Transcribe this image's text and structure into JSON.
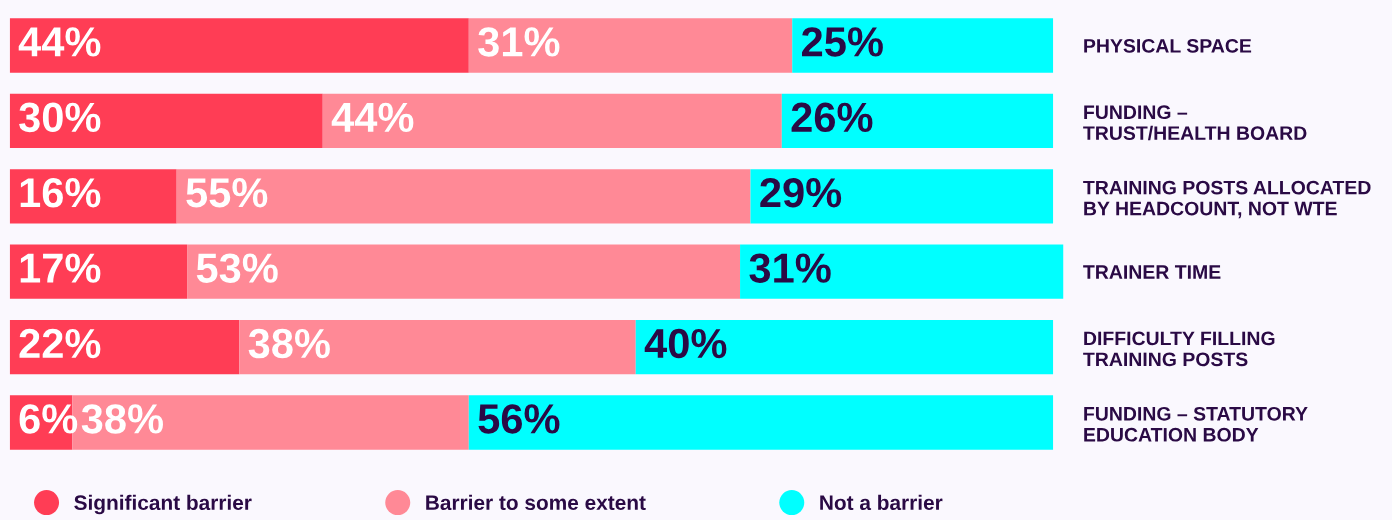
{
  "chart_data": {
    "type": "bar",
    "orientation": "horizontal",
    "stacked": true,
    "legend": "bottom left",
    "categories": [
      "PHYSICAL SPACE",
      "FUNDING –\nTRUST/HEALTH BOARD",
      "TRAINING POSTS ALLOCATED\nBY HEADCOUNT, NOT WTE",
      "TRAINER TIME",
      "DIFFICULTY FILLING\nTRAINING POSTS",
      "FUNDING – STATUTORY\nEDUCATION BODY"
    ],
    "series": [
      {
        "name": "Significant barrier",
        "color": "#ff3d55",
        "values": [
          44,
          30,
          16,
          17,
          22,
          6
        ],
        "value_labels": [
          "44%",
          "30%",
          "16%",
          "17%",
          "22%",
          "6%"
        ]
      },
      {
        "name": "Barrier to some extent",
        "color": "#ff8996",
        "values": [
          31,
          44,
          55,
          53,
          38,
          38
        ],
        "value_labels": [
          "31%",
          "44%",
          "55%",
          "53%",
          "38%",
          "38%"
        ]
      },
      {
        "name": "Not a barrier",
        "color": "#00ffff",
        "values": [
          25,
          26,
          29,
          31,
          40,
          56
        ],
        "value_labels": [
          "25%",
          "26%",
          "29%",
          "31%",
          "40%",
          "56%"
        ]
      }
    ]
  }
}
